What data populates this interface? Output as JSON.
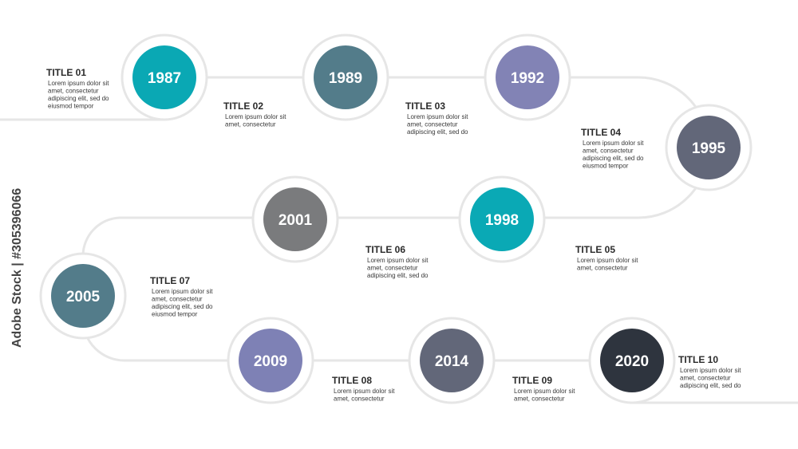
{
  "watermark": "Adobe Stock | #305396066",
  "nodes": [
    {
      "year": "1987",
      "title": "TITLE 01",
      "lines": [
        "Lorem ipsum dolor sit",
        "amet, consectetur",
        "adipiscing elit, sed do",
        "eiusmod tempor"
      ],
      "color": "#0aa8b4"
    },
    {
      "year": "1989",
      "title": "TITLE 02",
      "lines": [
        "Lorem ipsum dolor sit",
        "amet, consectetur"
      ],
      "color": "#537c8a"
    },
    {
      "year": "1992",
      "title": "TITLE 03",
      "lines": [
        "Lorem ipsum dolor sit",
        "amet, consectetur",
        "adipiscing elit, sed do"
      ],
      "color": "#8283b5"
    },
    {
      "year": "1995",
      "title": "TITLE 04",
      "lines": [
        "Lorem ipsum dolor sit",
        "amet, consectetur",
        "adipiscing elit, sed do",
        "eiusmod tempor"
      ],
      "color": "#626779"
    },
    {
      "year": "1998",
      "title": "TITLE 05",
      "lines": [
        "Lorem ipsum dolor sit",
        "amet, consectetur"
      ],
      "color": "#0aa9b5"
    },
    {
      "year": "2001",
      "title": "TITLE 06",
      "lines": [
        "Lorem ipsum dolor sit",
        "amet, consectetur",
        "adipiscing elit, sed do"
      ],
      "color": "#7a7b7d"
    },
    {
      "year": "2005",
      "title": "TITLE 07",
      "lines": [
        "Lorem ipsum dolor sit",
        "amet, consectetur",
        "adipiscing elit, sed do",
        "eiusmod tempor"
      ],
      "color": "#537c8a"
    },
    {
      "year": "2009",
      "title": "TITLE 08",
      "lines": [
        "Lorem ipsum dolor sit",
        "amet, consectetur"
      ],
      "color": "#7e81b5"
    },
    {
      "year": "2014",
      "title": "TITLE 09",
      "lines": [
        "Lorem ipsum dolor sit",
        "amet, consectetur"
      ],
      "color": "#626779"
    },
    {
      "year": "2020",
      "title": "TITLE 10",
      "lines": [
        "Lorem ipsum dolor sit",
        "amet, consectetur",
        "adipiscing elit, sed do"
      ],
      "color": "#2e343e"
    }
  ]
}
